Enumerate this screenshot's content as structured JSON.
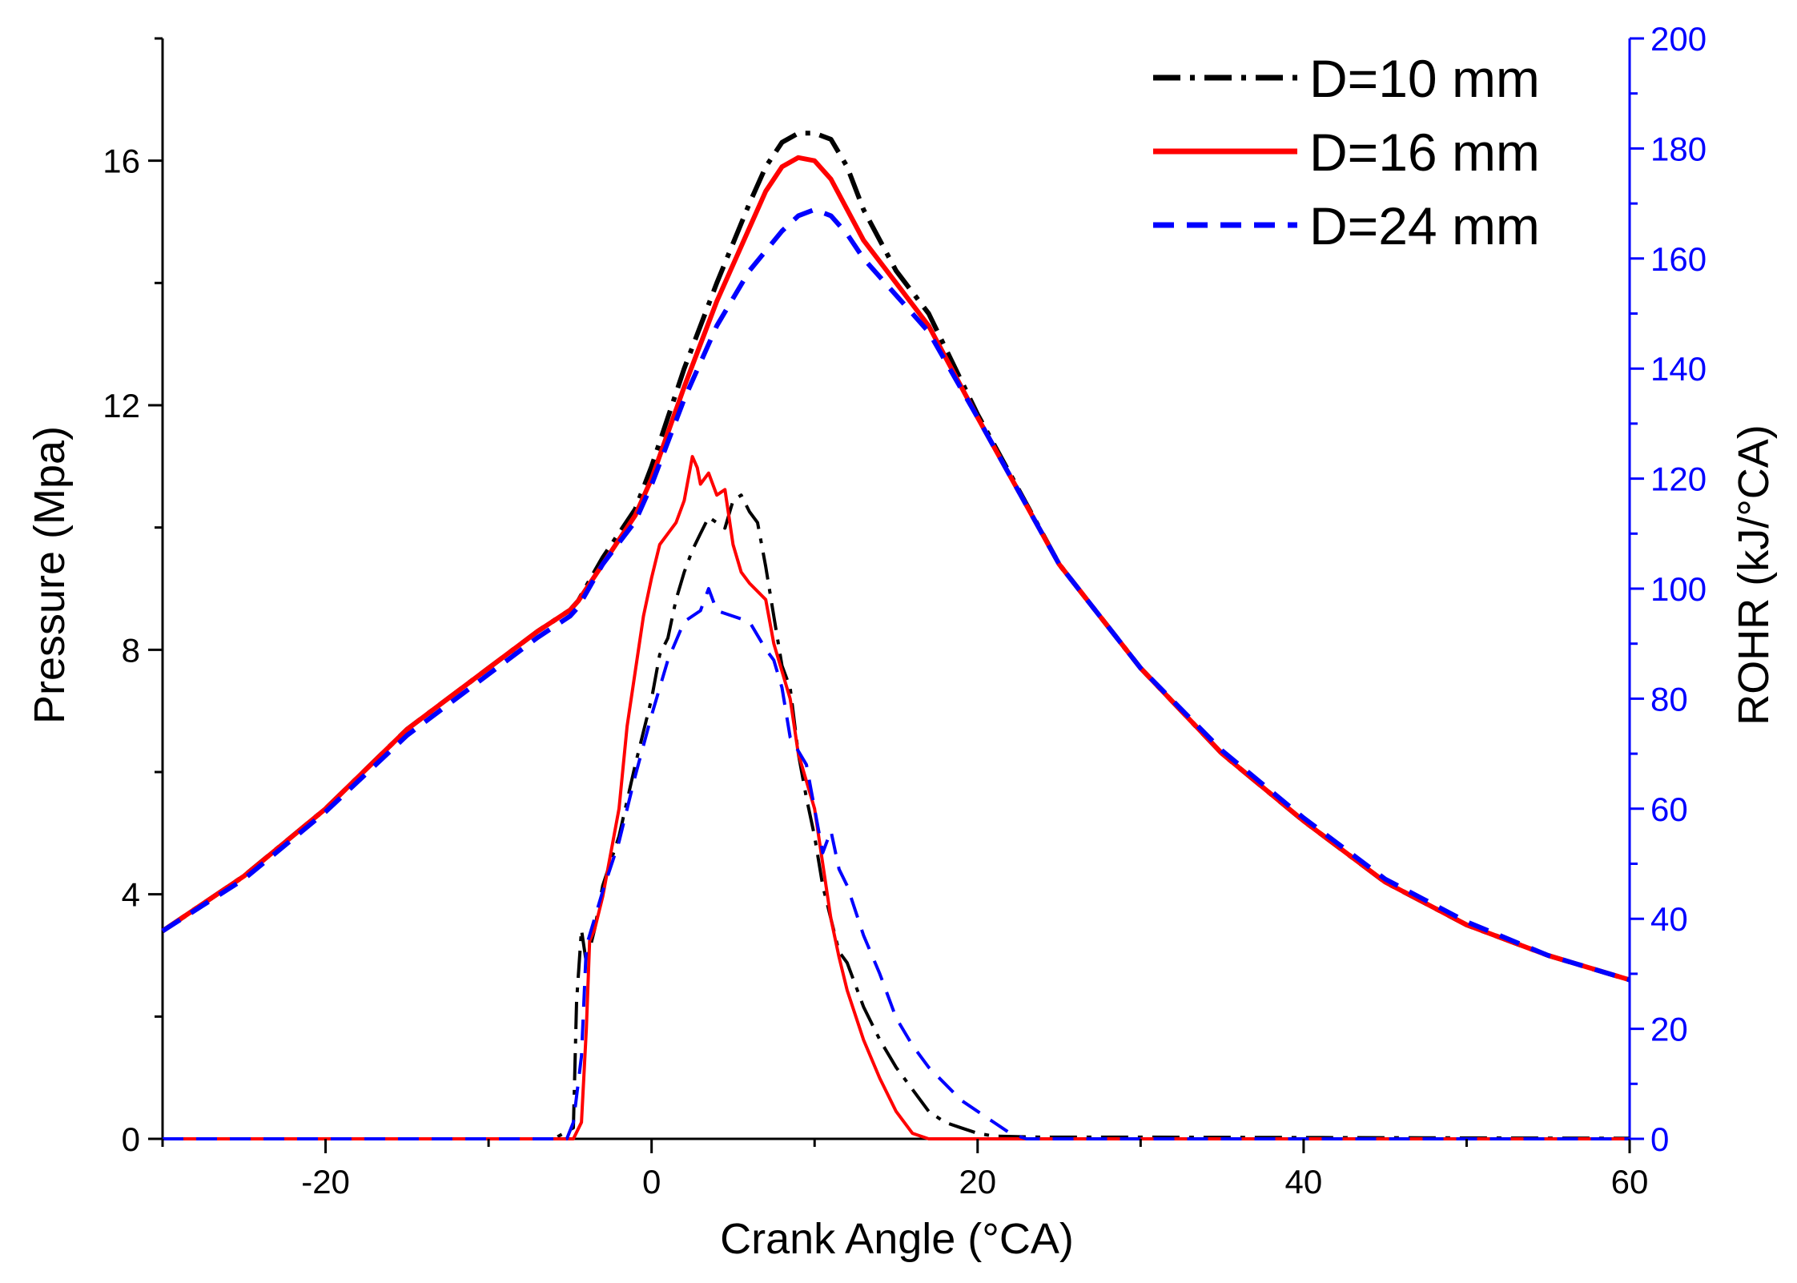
{
  "chart_data": {
    "type": "line",
    "title": "",
    "xlabel": "Crank Angle (°CA)",
    "ylabel_left": "Pressure (Mpa)",
    "ylabel_right": "ROHR (kJ/°CA)",
    "xlim": [
      -30,
      60
    ],
    "ylim_left": [
      0,
      18
    ],
    "ylim_right": [
      0,
      200
    ],
    "x_ticks": [
      -20,
      0,
      20,
      40,
      60
    ],
    "x_tick_labels": [
      "-20",
      "0",
      "20",
      "40",
      "60"
    ],
    "y_left_ticks": [
      0,
      4,
      8,
      12,
      16
    ],
    "y_left_tick_labels": [
      "0",
      "4",
      "8",
      "12",
      "16"
    ],
    "y_right_ticks": [
      0,
      20,
      40,
      60,
      80,
      100,
      120,
      140,
      160,
      180,
      200
    ],
    "y_right_tick_labels": [
      "0",
      "20",
      "40",
      "60",
      "80",
      "100",
      "120",
      "140",
      "160",
      "180",
      "200"
    ],
    "legend_position": "top-right",
    "grid": false,
    "series": [
      {
        "name": "D=10 mm",
        "axis": "left",
        "kind": "pressure",
        "color": "#000000",
        "style": "dashdot",
        "points": [
          [
            -30,
            3.4
          ],
          [
            -25,
            4.3
          ],
          [
            -20,
            5.4
          ],
          [
            -15,
            6.7
          ],
          [
            -10,
            7.7
          ],
          [
            -7,
            8.3
          ],
          [
            -5,
            8.65
          ],
          [
            -4.5,
            8.8
          ],
          [
            -3,
            9.5
          ],
          [
            -1,
            10.3
          ],
          [
            0,
            11.0
          ],
          [
            2,
            12.6
          ],
          [
            4,
            14.0
          ],
          [
            6,
            15.3
          ],
          [
            7,
            15.9
          ],
          [
            8,
            16.3
          ],
          [
            9,
            16.45
          ],
          [
            10,
            16.45
          ],
          [
            11,
            16.35
          ],
          [
            12,
            15.9
          ],
          [
            13,
            15.2
          ],
          [
            15,
            14.2
          ],
          [
            17,
            13.5
          ],
          [
            20,
            11.85
          ],
          [
            25,
            9.4
          ],
          [
            30,
            7.7
          ],
          [
            35,
            6.3
          ],
          [
            40,
            5.2
          ],
          [
            45,
            4.2
          ],
          [
            50,
            3.5
          ],
          [
            55,
            3.0
          ],
          [
            60,
            2.6
          ]
        ]
      },
      {
        "name": "D=16 mm",
        "axis": "left",
        "kind": "pressure",
        "color": "#ff0000",
        "style": "solid",
        "points": [
          [
            -30,
            3.4
          ],
          [
            -25,
            4.3
          ],
          [
            -20,
            5.4
          ],
          [
            -15,
            6.7
          ],
          [
            -10,
            7.7
          ],
          [
            -7,
            8.3
          ],
          [
            -5,
            8.65
          ],
          [
            -4.5,
            8.8
          ],
          [
            -3,
            9.4
          ],
          [
            -1,
            10.2
          ],
          [
            0,
            10.8
          ],
          [
            2,
            12.3
          ],
          [
            4,
            13.7
          ],
          [
            6,
            14.9
          ],
          [
            7,
            15.5
          ],
          [
            8,
            15.9
          ],
          [
            9,
            16.05
          ],
          [
            10,
            16.0
          ],
          [
            11,
            15.7
          ],
          [
            12,
            15.2
          ],
          [
            13,
            14.7
          ],
          [
            15,
            14.0
          ],
          [
            17,
            13.3
          ],
          [
            20,
            11.8
          ],
          [
            25,
            9.4
          ],
          [
            30,
            7.7
          ],
          [
            35,
            6.3
          ],
          [
            40,
            5.2
          ],
          [
            45,
            4.2
          ],
          [
            50,
            3.5
          ],
          [
            55,
            3.0
          ],
          [
            60,
            2.6
          ]
        ]
      },
      {
        "name": "D=24 mm",
        "axis": "left",
        "kind": "pressure",
        "color": "#0000ff",
        "style": "dashed",
        "points": [
          [
            -30,
            3.4
          ],
          [
            -25,
            4.25
          ],
          [
            -20,
            5.35
          ],
          [
            -15,
            6.6
          ],
          [
            -10,
            7.6
          ],
          [
            -7,
            8.2
          ],
          [
            -5,
            8.55
          ],
          [
            -4.5,
            8.7
          ],
          [
            -3,
            9.4
          ],
          [
            -1,
            10.1
          ],
          [
            0,
            10.7
          ],
          [
            2,
            12.1
          ],
          [
            4,
            13.3
          ],
          [
            6,
            14.2
          ],
          [
            8,
            14.85
          ],
          [
            9,
            15.1
          ],
          [
            10,
            15.2
          ],
          [
            11,
            15.1
          ],
          [
            12,
            14.8
          ],
          [
            13,
            14.4
          ],
          [
            15,
            13.8
          ],
          [
            17,
            13.2
          ],
          [
            20,
            11.8
          ],
          [
            25,
            9.4
          ],
          [
            30,
            7.7
          ],
          [
            35,
            6.35
          ],
          [
            40,
            5.25
          ],
          [
            45,
            4.25
          ],
          [
            50,
            3.55
          ],
          [
            55,
            3.0
          ],
          [
            60,
            2.6
          ]
        ]
      },
      {
        "name": "D=10 mm",
        "axis": "right",
        "kind": "rohr",
        "color": "#000000",
        "style": "dashdot",
        "points": [
          [
            -30,
            0
          ],
          [
            -6,
            0
          ],
          [
            -4.8,
            2
          ],
          [
            -4.6,
            25
          ],
          [
            -4.3,
            38
          ],
          [
            -4.0,
            32
          ],
          [
            -3.5,
            38
          ],
          [
            -3,
            46
          ],
          [
            -2,
            55
          ],
          [
            -1,
            68
          ],
          [
            0,
            80
          ],
          [
            0.5,
            88
          ],
          [
            1,
            91
          ],
          [
            1.5,
            98
          ],
          [
            2,
            103
          ],
          [
            2.5,
            107
          ],
          [
            3,
            110
          ],
          [
            3.5,
            113
          ],
          [
            4,
            112
          ],
          [
            4.5,
            111
          ],
          [
            5,
            116
          ],
          [
            5.5,
            117
          ],
          [
            6,
            114
          ],
          [
            6.5,
            112
          ],
          [
            7,
            104
          ],
          [
            7.5,
            95
          ],
          [
            8,
            86
          ],
          [
            8.5,
            82
          ],
          [
            9,
            70
          ],
          [
            9.5,
            62
          ],
          [
            10,
            55
          ],
          [
            10.5,
            46
          ],
          [
            11,
            40
          ],
          [
            11.5,
            34
          ],
          [
            12,
            32
          ],
          [
            13,
            24
          ],
          [
            14,
            18
          ],
          [
            15,
            13
          ],
          [
            16,
            9
          ],
          [
            17,
            5
          ],
          [
            18,
            3
          ],
          [
            19,
            2
          ],
          [
            20,
            1
          ],
          [
            21,
            0.5
          ],
          [
            24,
            0.3
          ],
          [
            30,
            0.3
          ],
          [
            60,
            0.1
          ]
        ]
      },
      {
        "name": "D=16 mm",
        "axis": "right",
        "kind": "rohr",
        "color": "#ff0000",
        "style": "solid",
        "points": [
          [
            -30,
            0
          ],
          [
            -4.8,
            0
          ],
          [
            -4.3,
            3
          ],
          [
            -4.0,
            20
          ],
          [
            -3.8,
            36
          ],
          [
            -3.5,
            38
          ],
          [
            -3,
            44
          ],
          [
            -2,
            60
          ],
          [
            -1.5,
            75
          ],
          [
            -1,
            85
          ],
          [
            -0.5,
            95
          ],
          [
            0,
            102
          ],
          [
            0.5,
            108
          ],
          [
            1,
            110
          ],
          [
            1.5,
            112
          ],
          [
            2,
            116
          ],
          [
            2.5,
            124
          ],
          [
            2.8,
            122
          ],
          [
            3,
            119
          ],
          [
            3.5,
            121
          ],
          [
            4,
            117
          ],
          [
            4.5,
            118
          ],
          [
            5,
            108
          ],
          [
            5.5,
            103
          ],
          [
            6,
            101
          ],
          [
            7,
            98
          ],
          [
            7.5,
            90
          ],
          [
            8,
            85
          ],
          [
            8.5,
            80
          ],
          [
            9,
            70
          ],
          [
            10,
            60
          ],
          [
            10.5,
            50
          ],
          [
            11,
            40
          ],
          [
            11.5,
            33
          ],
          [
            12,
            27
          ],
          [
            13,
            18
          ],
          [
            14,
            11
          ],
          [
            15,
            5
          ],
          [
            16,
            1
          ],
          [
            17,
            0
          ],
          [
            60,
            0
          ]
        ]
      },
      {
        "name": "D=24 mm",
        "axis": "right",
        "kind": "rohr",
        "color": "#0000ff",
        "style": "dashed",
        "points": [
          [
            -30,
            0
          ],
          [
            -5.2,
            0
          ],
          [
            -4.8,
            3
          ],
          [
            -4.3,
            15
          ],
          [
            -4.0,
            35
          ],
          [
            -3.5,
            40
          ],
          [
            -3,
            45
          ],
          [
            -2,
            54
          ],
          [
            -1,
            66
          ],
          [
            0,
            77
          ],
          [
            1,
            87
          ],
          [
            2,
            94
          ],
          [
            3,
            96
          ],
          [
            3.5,
            100
          ],
          [
            4,
            96
          ],
          [
            5,
            95
          ],
          [
            6,
            94
          ],
          [
            7,
            89
          ],
          [
            7.5,
            87
          ],
          [
            8,
            82
          ],
          [
            8.5,
            73
          ],
          [
            9.5,
            68
          ],
          [
            10,
            60
          ],
          [
            10.5,
            52
          ],
          [
            11,
            56
          ],
          [
            11.5,
            49
          ],
          [
            12,
            46
          ],
          [
            13,
            37
          ],
          [
            14,
            30
          ],
          [
            15,
            22
          ],
          [
            16,
            17
          ],
          [
            17,
            13
          ],
          [
            18,
            10
          ],
          [
            19,
            7
          ],
          [
            20,
            5
          ],
          [
            21,
            3
          ],
          [
            22,
            1
          ],
          [
            23,
            0
          ],
          [
            60,
            0
          ]
        ]
      }
    ]
  }
}
